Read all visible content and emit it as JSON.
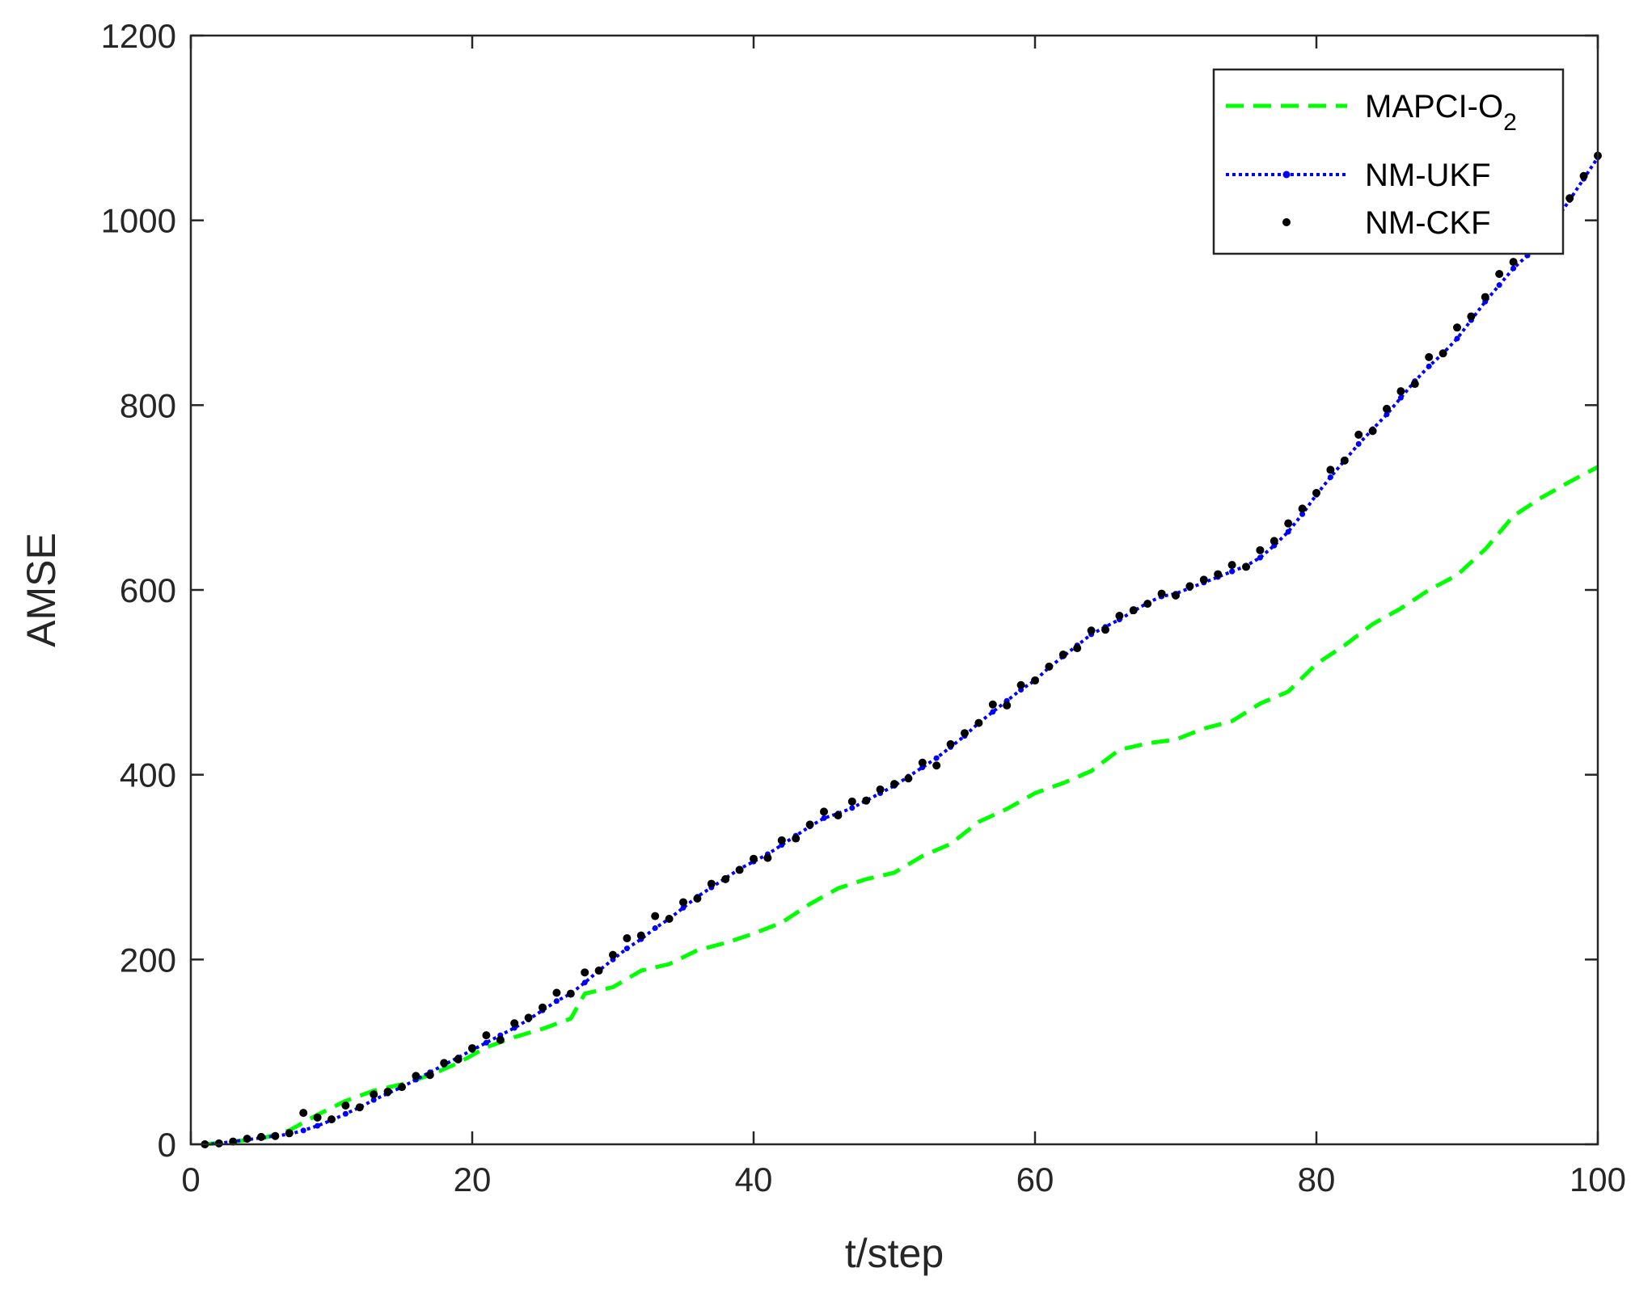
{
  "chart_data": {
    "type": "line",
    "xlabel": "t/step",
    "ylabel": "AMSE",
    "xlim": [
      0,
      100
    ],
    "ylim": [
      0,
      1200
    ],
    "xticks": [
      0,
      20,
      40,
      60,
      80,
      100
    ],
    "yticks": [
      0,
      200,
      400,
      600,
      800,
      1000,
      1200
    ],
    "grid": false,
    "legend_position": "top-right",
    "legend": [
      {
        "label_main": "MAPCI-O",
        "label_sub": "2",
        "style": "dashed",
        "color": "#00ff00"
      },
      {
        "label_main": "NM-UKF",
        "label_sub": "",
        "style": "dotted-markers",
        "color": "#0000ff"
      },
      {
        "label_main": "NM-CKF",
        "label_sub": "",
        "style": "markers",
        "color": "#000000"
      }
    ],
    "series": [
      {
        "name": "MAPCI-O2",
        "color": "#00ff00",
        "style": "dashed",
        "x": [
          1,
          5,
          7,
          9,
          11,
          13,
          15,
          17,
          19,
          21,
          23,
          25,
          27,
          28,
          30,
          32,
          34,
          36,
          38,
          40,
          42,
          44,
          46,
          48,
          50,
          52,
          54,
          56,
          58,
          60,
          62,
          64,
          66,
          68,
          70,
          72,
          74,
          76,
          78,
          80,
          82,
          84,
          86,
          88,
          90,
          92,
          94,
          96,
          98,
          100
        ],
        "y": [
          0,
          6,
          15,
          32,
          47,
          58,
          65,
          75,
          88,
          105,
          116,
          125,
          136,
          163,
          170,
          188,
          195,
          210,
          218,
          228,
          240,
          260,
          277,
          287,
          294,
          312,
          325,
          349,
          363,
          380,
          391,
          404,
          427,
          434,
          438,
          450,
          458,
          477,
          490,
          520,
          540,
          563,
          580,
          600,
          616,
          644,
          680,
          700,
          717,
          733
        ]
      },
      {
        "name": "NM-UKF",
        "color": "#0000ff",
        "style": "dotted-markers",
        "x": [
          1,
          2,
          3,
          4,
          5,
          6,
          7,
          8,
          9,
          10,
          11,
          12,
          13,
          14,
          15,
          16,
          17,
          18,
          19,
          20,
          21,
          22,
          23,
          24,
          25,
          26,
          27,
          28,
          29,
          30,
          31,
          32,
          33,
          34,
          35,
          36,
          37,
          38,
          39,
          40,
          41,
          42,
          43,
          44,
          45,
          46,
          47,
          48,
          49,
          50,
          51,
          52,
          53,
          54,
          55,
          56,
          57,
          58,
          59,
          60,
          61,
          62,
          63,
          64,
          65,
          66,
          67,
          68,
          69,
          70,
          71,
          72,
          73,
          74,
          75,
          76,
          77,
          78,
          79,
          80,
          81,
          82,
          83,
          84,
          85,
          86,
          87,
          88,
          89,
          90,
          91,
          92,
          93,
          94,
          95,
          96,
          97,
          98,
          99,
          100
        ],
        "y": [
          0,
          1,
          3,
          5,
          7,
          9,
          11,
          15,
          20,
          26,
          33,
          40,
          48,
          55,
          62,
          70,
          78,
          86,
          94,
          102,
          110,
          118,
          126,
          135,
          145,
          155,
          163,
          175,
          188,
          200,
          212,
          222,
          234,
          244,
          256,
          268,
          278,
          288,
          298,
          306,
          314,
          324,
          334,
          344,
          353,
          358,
          364,
          372,
          380,
          388,
          398,
          408,
          418,
          430,
          442,
          456,
          468,
          480,
          492,
          502,
          516,
          528,
          540,
          552,
          560,
          568,
          577,
          586,
          593,
          596,
          602,
          608,
          614,
          620,
          626,
          635,
          648,
          663,
          682,
          703,
          722,
          740,
          758,
          774,
          790,
          808,
          826,
          842,
          856,
          872,
          892,
          912,
          930,
          948,
          962,
          980,
          1000,
          1022,
          1045,
          1068
        ]
      },
      {
        "name": "NM-CKF",
        "color": "#000000",
        "style": "markers",
        "x": [
          1,
          2,
          3,
          4,
          5,
          6,
          7,
          8,
          9,
          10,
          11,
          12,
          13,
          14,
          15,
          16,
          17,
          18,
          19,
          20,
          21,
          22,
          23,
          24,
          25,
          26,
          27,
          28,
          29,
          30,
          31,
          32,
          33,
          34,
          35,
          36,
          37,
          38,
          39,
          40,
          41,
          42,
          43,
          44,
          45,
          46,
          47,
          48,
          49,
          50,
          51,
          52,
          53,
          54,
          55,
          56,
          57,
          58,
          59,
          60,
          61,
          62,
          63,
          64,
          65,
          66,
          67,
          68,
          69,
          70,
          71,
          72,
          73,
          74,
          75,
          76,
          77,
          78,
          79,
          80,
          81,
          82,
          83,
          84,
          85,
          86,
          87,
          88,
          89,
          90,
          91,
          92,
          93,
          94,
          95,
          96,
          97,
          98,
          99,
          100
        ],
        "y": [
          0,
          1,
          3,
          6,
          8,
          9,
          12,
          34,
          29,
          27,
          42,
          40,
          54,
          57,
          62,
          74,
          75,
          88,
          92,
          104,
          118,
          113,
          131,
          137,
          148,
          164,
          163,
          186,
          188,
          205,
          223,
          226,
          247,
          244,
          262,
          266,
          282,
          287,
          297,
          309,
          310,
          329,
          331,
          346,
          360,
          356,
          371,
          372,
          384,
          390,
          396,
          413,
          410,
          433,
          445,
          456,
          476,
          475,
          497,
          502,
          517,
          530,
          537,
          556,
          557,
          572,
          578,
          585,
          596,
          594,
          604,
          611,
          617,
          627,
          625,
          643,
          653,
          672,
          688,
          705,
          730,
          740,
          768,
          772,
          796,
          815,
          823,
          852,
          856,
          884,
          896,
          917,
          942,
          955,
          970,
          985,
          1000,
          1024,
          1048,
          1070
        ]
      }
    ]
  }
}
